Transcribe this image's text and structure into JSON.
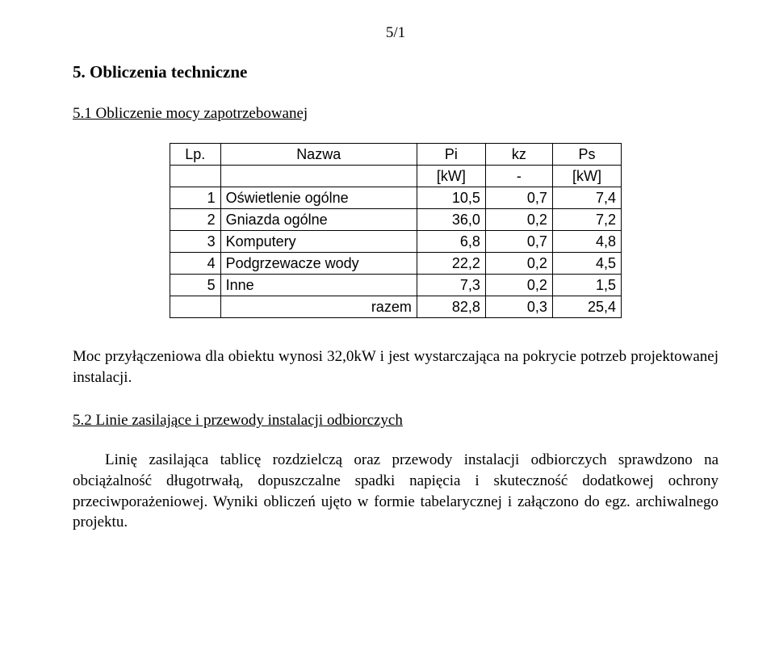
{
  "page_number": "5/1",
  "section_title": "5. Obliczenia techniczne",
  "subsection_1": "5.1 Obliczenie mocy zapotrzebowanej",
  "table": {
    "headers": {
      "lp": "Lp.",
      "name": "Nazwa",
      "pi": "Pi",
      "kz": "kz",
      "ps": "Ps"
    },
    "units": {
      "lp": "",
      "name": "",
      "pi": "[kW]",
      "kz": "-",
      "ps": "[kW]"
    },
    "rows": [
      {
        "lp": "1",
        "name": "Oświetlenie ogólne",
        "pi": "10,5",
        "kz": "0,7",
        "ps": "7,4"
      },
      {
        "lp": "2",
        "name": "Gniazda ogólne",
        "pi": "36,0",
        "kz": "0,2",
        "ps": "7,2"
      },
      {
        "lp": "3",
        "name": "Komputery",
        "pi": "6,8",
        "kz": "0,7",
        "ps": "4,8"
      },
      {
        "lp": "4",
        "name": "Podgrzewacze wody",
        "pi": "22,2",
        "kz": "0,2",
        "ps": "4,5"
      },
      {
        "lp": "5",
        "name": "Inne",
        "pi": "7,3",
        "kz": "0,2",
        "ps": "1,5"
      }
    ],
    "total": {
      "name": "razem",
      "pi": "82,8",
      "kz": "0,3",
      "ps": "25,4"
    }
  },
  "paragraph_1": "Moc przyłączeniowa dla obiektu wynosi 32,0kW i jest wystarczająca na pokrycie potrzeb projektowanej instalacji.",
  "subsection_2": "5.2 Linie zasilające i przewody instalacji odbiorczych",
  "paragraph_2": "Linię zasilająca tablicę rozdzielczą oraz przewody instalacji odbiorczych sprawdzono na obciążalność długotrwałą, dopuszczalne spadki napięcia i skuteczność dodatkowej ochrony przeciwporażeniowej. Wyniki obliczeń ujęto w formie tabelarycznej i załączono do egz. archiwalnego projektu."
}
